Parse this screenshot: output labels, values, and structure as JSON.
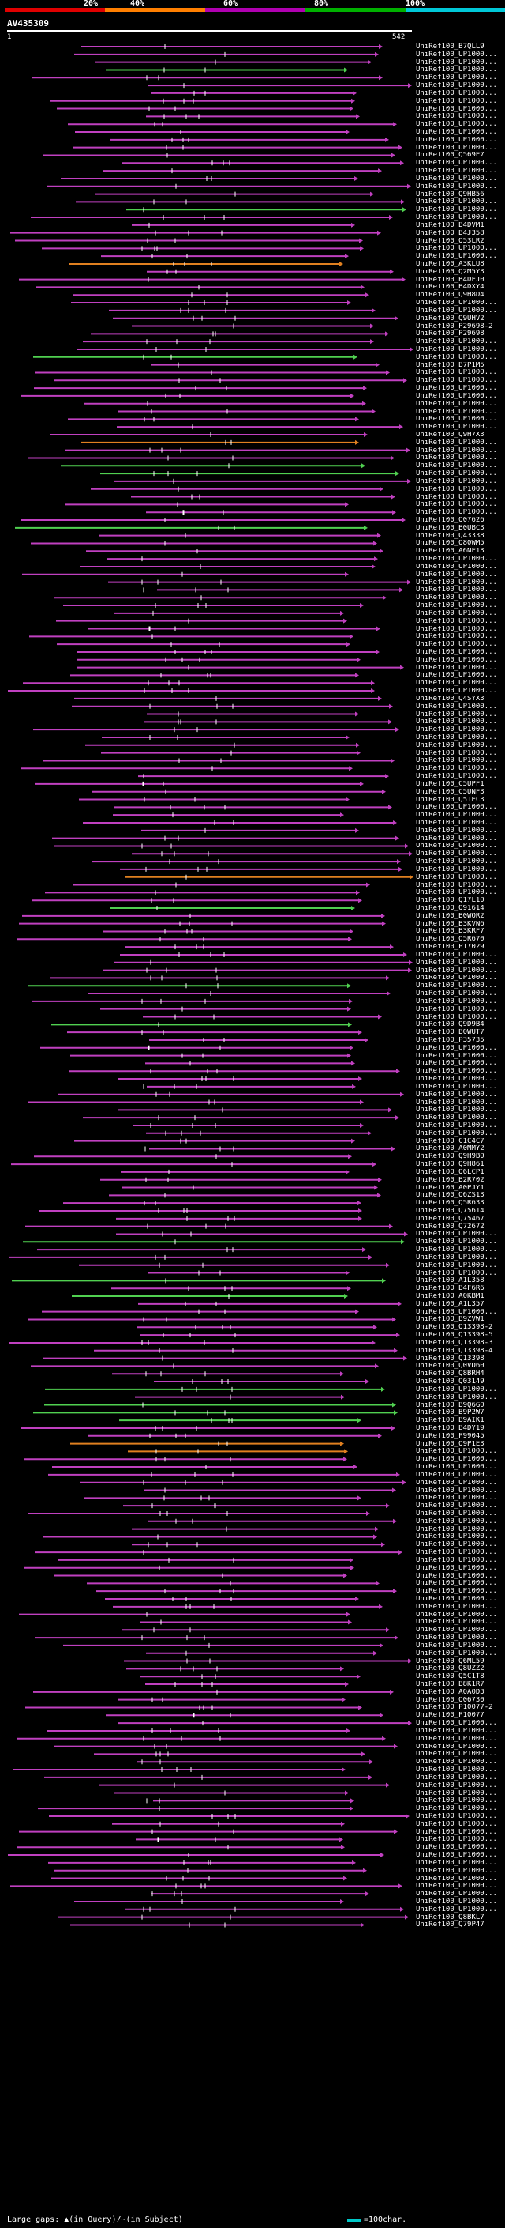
{
  "legend": {
    "segments": [
      {
        "label": "20%",
        "color": "#e00000"
      },
      {
        "label": "40%",
        "color": "#ff7f00"
      },
      {
        "label": "60%",
        "color": "#b000b0"
      },
      {
        "label": "80%",
        "color": "#00b000"
      },
      {
        "label": "100%",
        "color": "#00c8d8"
      }
    ]
  },
  "query": {
    "id": "AV435309",
    "start": "1",
    "end": "542"
  },
  "footer": {
    "gaps_text": "Large gaps: ▲(in Query)/~(in Subject)",
    "scale_text": "=100char."
  },
  "hits": [
    {
      "label": "UniRef100_B7QLL9",
      "color": "#c040c0"
    },
    {
      "label": "UniRef100_UP1000...",
      "color": "#c040c0"
    },
    {
      "label": "UniRef100_UP1000...",
      "color": "#c040c0"
    },
    {
      "label": "UniRef100_UP1000...",
      "color": "#50d050"
    },
    {
      "label": "UniRef100_UP1000...",
      "color": "#c040c0"
    },
    {
      "label": "UniRef100_UP1000...",
      "color": "#c040c0"
    },
    {
      "label": "UniRef100_UP1000...",
      "color": "#c040c0"
    },
    {
      "label": "UniRef100_UP1000...",
      "color": "#c040c0"
    },
    {
      "label": "UniRef100_UP1000...",
      "color": "#c040c0"
    },
    {
      "label": "UniRef100_UP1000...",
      "color": "#c040c0"
    },
    {
      "label": "UniRef100_UP1000...",
      "color": "#c040c0"
    },
    {
      "label": "UniRef100_UP1000...",
      "color": "#c040c0"
    },
    {
      "label": "UniRef100_UP1000...",
      "color": "#c040c0"
    },
    {
      "label": "UniRef100_UP1000...",
      "color": "#c040c0"
    },
    {
      "label": "UniRef100_Q569E7",
      "color": "#c040c0"
    },
    {
      "label": "UniRef100_UP1000...",
      "color": "#c040c0"
    },
    {
      "label": "UniRef100_UP1000...",
      "color": "#c040c0"
    },
    {
      "label": "UniRef100_UP1000...",
      "color": "#c040c0"
    },
    {
      "label": "UniRef100_UP1000...",
      "color": "#c040c0"
    },
    {
      "label": "UniRef100_Q9HB56",
      "color": "#c040c0"
    },
    {
      "label": "UniRef100_UP1000...",
      "color": "#c040c0"
    },
    {
      "label": "UniRef100_UP1000...",
      "color": "#50d050"
    },
    {
      "label": "UniRef100_UP1000...",
      "color": "#c040c0"
    },
    {
      "label": "UniRef100_B4DVM1",
      "color": "#c040c0"
    },
    {
      "label": "UniRef100_B4J358",
      "color": "#c040c0"
    },
    {
      "label": "UniRef100_Q53LR2",
      "color": "#c040c0"
    },
    {
      "label": "UniRef100_UP1000...",
      "color": "#c040c0"
    },
    {
      "label": "UniRef100_UP1000...",
      "color": "#c040c0"
    },
    {
      "label": "UniRef100_A3KLU8",
      "color": "#e08020"
    },
    {
      "label": "UniRef100_Q2M5Y3",
      "color": "#c040c0"
    },
    {
      "label": "UniRef100_B4DFJ0",
      "color": "#c040c0"
    },
    {
      "label": "UniRef100_B4DXY4",
      "color": "#c040c0"
    },
    {
      "label": "UniRef100_Q9H8D4",
      "color": "#c040c0"
    },
    {
      "label": "UniRef100_UP1000...",
      "color": "#c040c0"
    },
    {
      "label": "UniRef100_UP1000...",
      "color": "#c040c0"
    },
    {
      "label": "UniRef100_Q9UHV2",
      "color": "#c040c0"
    },
    {
      "label": "UniRef100_P29698-2",
      "color": "#c040c0"
    },
    {
      "label": "UniRef100_P29698",
      "color": "#c040c0"
    },
    {
      "label": "UniRef100_UP1000...",
      "color": "#c040c0"
    },
    {
      "label": "UniRef100_UP1000...",
      "color": "#c040c0"
    },
    {
      "label": "UniRef100_UP1000...",
      "color": "#50d050"
    },
    {
      "label": "UniRef100_B7P1M5",
      "color": "#c040c0"
    },
    {
      "label": "UniRef100_UP1000...",
      "color": "#c040c0"
    },
    {
      "label": "UniRef100_UP1000...",
      "color": "#c040c0"
    },
    {
      "label": "UniRef100_UP1000...",
      "color": "#c040c0"
    },
    {
      "label": "UniRef100_UP1000...",
      "color": "#c040c0"
    },
    {
      "label": "UniRef100_UP1000...",
      "color": "#c040c0"
    },
    {
      "label": "UniRef100_UP1000...",
      "color": "#c040c0"
    },
    {
      "label": "UniRef100_UP1000...",
      "color": "#c040c0"
    },
    {
      "label": "UniRef100_UP1000...",
      "color": "#c040c0"
    },
    {
      "label": "UniRef100_Q9H7X3",
      "color": "#c040c0"
    },
    {
      "label": "UniRef100_UP1000...",
      "color": "#e08020"
    },
    {
      "label": "UniRef100_UP1000...",
      "color": "#c040c0"
    },
    {
      "label": "UniRef100_UP1000...",
      "color": "#c040c0"
    },
    {
      "label": "UniRef100_UP1000...",
      "color": "#50d050"
    },
    {
      "label": "UniRef100_UP1000...",
      "color": "#50d050"
    },
    {
      "label": "UniRef100_UP1000...",
      "color": "#c040c0"
    },
    {
      "label": "UniRef100_UP1000...",
      "color": "#c040c0"
    },
    {
      "label": "UniRef100_UP1000...",
      "color": "#c040c0"
    },
    {
      "label": "UniRef100_UP1000...",
      "color": "#c040c0"
    },
    {
      "label": "UniRef100_UP1000...",
      "color": "#c040c0"
    },
    {
      "label": "UniRef100_Q07626",
      "color": "#c040c0"
    },
    {
      "label": "UniRef100_B0UBC3",
      "color": "#50d050"
    },
    {
      "label": "UniRef100_Q43338",
      "color": "#c040c0"
    },
    {
      "label": "UniRef100_Q80WM5",
      "color": "#c040c0"
    },
    {
      "label": "UniRef100_A6NF13",
      "color": "#c040c0"
    },
    {
      "label": "UniRef100_UP1000...",
      "color": "#c040c0"
    },
    {
      "label": "UniRef100_UP1000...",
      "color": "#c040c0"
    },
    {
      "label": "UniRef100_UP1000...",
      "color": "#c040c0"
    },
    {
      "label": "UniRef100_UP1000...",
      "color": "#c040c0"
    },
    {
      "label": "UniRef100_UP1000...",
      "color": "#c040c0"
    },
    {
      "label": "UniRef100_UP1000...",
      "color": "#c040c0"
    },
    {
      "label": "UniRef100_UP1000...",
      "color": "#c040c0"
    },
    {
      "label": "UniRef100_UP1000...",
      "color": "#c040c0"
    },
    {
      "label": "UniRef100_UP1000...",
      "color": "#c040c0"
    },
    {
      "label": "UniRef100_UP1000...",
      "color": "#c040c0"
    },
    {
      "label": "UniRef100_UP1000...",
      "color": "#c040c0"
    },
    {
      "label": "UniRef100_UP1000...",
      "color": "#c040c0"
    },
    {
      "label": "UniRef100_UP1000...",
      "color": "#c040c0"
    },
    {
      "label": "UniRef100_UP1000...",
      "color": "#c040c0"
    },
    {
      "label": "UniRef100_UP1000...",
      "color": "#c040c0"
    },
    {
      "label": "UniRef100_UP1000...",
      "color": "#c040c0"
    },
    {
      "label": "UniRef100_UP1000...",
      "color": "#c040c0"
    },
    {
      "label": "UniRef100_UP1000...",
      "color": "#c040c0"
    },
    {
      "label": "UniRef100_Q4SYX3",
      "color": "#c040c0"
    },
    {
      "label": "UniRef100_UP1000...",
      "color": "#c040c0"
    },
    {
      "label": "UniRef100_UP1000...",
      "color": "#c040c0"
    },
    {
      "label": "UniRef100_UP1000...",
      "color": "#c040c0"
    },
    {
      "label": "UniRef100_UP1000...",
      "color": "#c040c0"
    },
    {
      "label": "UniRef100_UP1000...",
      "color": "#c040c0"
    },
    {
      "label": "UniRef100_UP1000...",
      "color": "#c040c0"
    },
    {
      "label": "UniRef100_UP1000...",
      "color": "#c040c0"
    },
    {
      "label": "UniRef100_UP1000...",
      "color": "#c040c0"
    },
    {
      "label": "UniRef100_UP1000...",
      "color": "#c040c0"
    },
    {
      "label": "UniRef100_UP1000...",
      "color": "#c040c0"
    },
    {
      "label": "UniRef100_C5UPF1",
      "color": "#c040c0"
    },
    {
      "label": "UniRef100_C5UNF3",
      "color": "#c040c0"
    },
    {
      "label": "UniRef100_Q5TEC3",
      "color": "#c040c0"
    },
    {
      "label": "UniRef100_UP1000...",
      "color": "#c040c0"
    },
    {
      "label": "UniRef100_UP1000...",
      "color": "#c040c0"
    },
    {
      "label": "UniRef100_UP1000...",
      "color": "#c040c0"
    },
    {
      "label": "UniRef100_UP1000...",
      "color": "#c040c0"
    },
    {
      "label": "UniRef100_UP1000...",
      "color": "#c040c0"
    },
    {
      "label": "UniRef100_UP1000...",
      "color": "#c040c0"
    },
    {
      "label": "UniRef100_UP1000...",
      "color": "#c040c0"
    },
    {
      "label": "UniRef100_UP1000...",
      "color": "#c040c0"
    },
    {
      "label": "UniRef100_UP1000...",
      "color": "#c040c0"
    },
    {
      "label": "UniRef100_UP1000...",
      "color": "#e08020"
    },
    {
      "label": "UniRef100_UP1000...",
      "color": "#c040c0"
    },
    {
      "label": "UniRef100_UP1000...",
      "color": "#c040c0"
    },
    {
      "label": "UniRef100_Q17L10",
      "color": "#c040c0"
    },
    {
      "label": "UniRef100_Q91614",
      "color": "#50d050"
    },
    {
      "label": "UniRef100_B0WOR2",
      "color": "#c040c0"
    },
    {
      "label": "UniRef100_B3KVN6",
      "color": "#c040c0"
    },
    {
      "label": "UniRef100_B3KRF7",
      "color": "#c040c0"
    },
    {
      "label": "UniRef100_Q5R670",
      "color": "#c040c0"
    },
    {
      "label": "UniRef100_P17029",
      "color": "#c040c0"
    },
    {
      "label": "UniRef100_UP1000...",
      "color": "#c040c0"
    },
    {
      "label": "UniRef100_UP1000...",
      "color": "#c040c0"
    },
    {
      "label": "UniRef100_UP1000...",
      "color": "#c040c0"
    },
    {
      "label": "UniRef100_UP1000...",
      "color": "#c040c0"
    },
    {
      "label": "UniRef100_UP1000...",
      "color": "#50d050"
    },
    {
      "label": "UniRef100_UP1000...",
      "color": "#c040c0"
    },
    {
      "label": "UniRef100_UP1000...",
      "color": "#c040c0"
    },
    {
      "label": "UniRef100_UP1000...",
      "color": "#c040c0"
    },
    {
      "label": "UniRef100_UP1000...",
      "color": "#c040c0"
    },
    {
      "label": "UniRef100_Q9D9B4",
      "color": "#50d050"
    },
    {
      "label": "UniRef100_B0WUT7",
      "color": "#c040c0"
    },
    {
      "label": "UniRef100_P35735",
      "color": "#c040c0"
    },
    {
      "label": "UniRef100_UP1000...",
      "color": "#c040c0"
    },
    {
      "label": "UniRef100_UP1000...",
      "color": "#c040c0"
    },
    {
      "label": "UniRef100_UP1000...",
      "color": "#c040c0"
    },
    {
      "label": "UniRef100_UP1000...",
      "color": "#c040c0"
    },
    {
      "label": "UniRef100_UP1000...",
      "color": "#c040c0"
    },
    {
      "label": "UniRef100_UP1000...",
      "color": "#c040c0"
    },
    {
      "label": "UniRef100_UP1000...",
      "color": "#c040c0"
    },
    {
      "label": "UniRef100_UP1000...",
      "color": "#c040c0"
    },
    {
      "label": "UniRef100_UP1000...",
      "color": "#c040c0"
    },
    {
      "label": "UniRef100_UP1000...",
      "color": "#c040c0"
    },
    {
      "label": "UniRef100_UP1000...",
      "color": "#c040c0"
    },
    {
      "label": "UniRef100_UP1000...",
      "color": "#c040c0"
    },
    {
      "label": "UniRef100_C1C4C7",
      "color": "#c040c0"
    },
    {
      "label": "UniRef100_A0MMY2",
      "color": "#c040c0"
    },
    {
      "label": "UniRef100_Q9H9B0",
      "color": "#c040c0"
    },
    {
      "label": "UniRef100_Q9H861",
      "color": "#c040c0"
    },
    {
      "label": "UniRef100_Q6LCP1",
      "color": "#c040c0"
    },
    {
      "label": "UniRef100_B2R702",
      "color": "#c040c0"
    },
    {
      "label": "UniRef100_A0PJY1",
      "color": "#c040c0"
    },
    {
      "label": "UniRef100_Q6ZS13",
      "color": "#c040c0"
    },
    {
      "label": "UniRef100_Q5R633",
      "color": "#c040c0"
    },
    {
      "label": "UniRef100_Q75614",
      "color": "#c040c0"
    },
    {
      "label": "UniRef100_Q75467",
      "color": "#c040c0"
    },
    {
      "label": "UniRef100_Q72672",
      "color": "#c040c0"
    },
    {
      "label": "UniRef100_UP1000...",
      "color": "#c040c0"
    },
    {
      "label": "UniRef100_UP1000...",
      "color": "#50d050"
    },
    {
      "label": "UniRef100_UP1000...",
      "color": "#c040c0"
    },
    {
      "label": "UniRef100_UP1000...",
      "color": "#c040c0"
    },
    {
      "label": "UniRef100_UP1000...",
      "color": "#c040c0"
    },
    {
      "label": "UniRef100_UP1000...",
      "color": "#c040c0"
    },
    {
      "label": "UniRef100_A1L358",
      "color": "#50d050"
    },
    {
      "label": "UniRef100_B4F6R6",
      "color": "#c040c0"
    },
    {
      "label": "UniRef100_A0KBM1",
      "color": "#50d050"
    },
    {
      "label": "UniRef100_A1L357",
      "color": "#c040c0"
    },
    {
      "label": "UniRef100_UP1000...",
      "color": "#c040c0"
    },
    {
      "label": "UniRef100_B9ZVW1",
      "color": "#c040c0"
    },
    {
      "label": "UniRef100_Q13398-2",
      "color": "#c040c0"
    },
    {
      "label": "UniRef100_Q13398-5",
      "color": "#c040c0"
    },
    {
      "label": "UniRef100_Q13398-3",
      "color": "#c040c0"
    },
    {
      "label": "UniRef100_Q13398-4",
      "color": "#c040c0"
    },
    {
      "label": "UniRef100_Q13398",
      "color": "#c040c0"
    },
    {
      "label": "UniRef100_Q0VD60",
      "color": "#c040c0"
    },
    {
      "label": "UniRef100_Q8BRH4",
      "color": "#c040c0"
    },
    {
      "label": "UniRef100_Q03149",
      "color": "#c040c0"
    },
    {
      "label": "UniRef100_UP1000...",
      "color": "#50d050"
    },
    {
      "label": "UniRef100_UP1000...",
      "color": "#c040c0"
    },
    {
      "label": "UniRef100_B9Q6G0",
      "color": "#50d050"
    },
    {
      "label": "UniRef100_B9P2W7",
      "color": "#50d050"
    },
    {
      "label": "UniRef100_B9AIK1",
      "color": "#50d050"
    },
    {
      "label": "UniRef100_B4DY19",
      "color": "#c040c0"
    },
    {
      "label": "UniRef100_P99045",
      "color": "#c040c0"
    },
    {
      "label": "UniRef100_Q9P1E3",
      "color": "#e08020"
    },
    {
      "label": "UniRef100_UP1000...",
      "color": "#e08020"
    },
    {
      "label": "UniRef100_UP1000...",
      "color": "#c040c0"
    },
    {
      "label": "UniRef100_UP1000...",
      "color": "#c040c0"
    },
    {
      "label": "UniRef100_UP1000...",
      "color": "#c040c0"
    },
    {
      "label": "UniRef100_UP1000...",
      "color": "#c040c0"
    },
    {
      "label": "UniRef100_UP1000...",
      "color": "#c040c0"
    },
    {
      "label": "UniRef100_UP1000...",
      "color": "#c040c0"
    },
    {
      "label": "UniRef100_UP1000...",
      "color": "#c040c0"
    },
    {
      "label": "UniRef100_UP1000...",
      "color": "#c040c0"
    },
    {
      "label": "UniRef100_UP1000...",
      "color": "#c040c0"
    },
    {
      "label": "UniRef100_UP1000...",
      "color": "#c040c0"
    },
    {
      "label": "UniRef100_UP1000...",
      "color": "#c040c0"
    },
    {
      "label": "UniRef100_UP1000...",
      "color": "#c040c0"
    },
    {
      "label": "UniRef100_UP1000...",
      "color": "#c040c0"
    },
    {
      "label": "UniRef100_UP1000...",
      "color": "#c040c0"
    },
    {
      "label": "UniRef100_UP1000...",
      "color": "#c040c0"
    },
    {
      "label": "UniRef100_UP1000...",
      "color": "#c040c0"
    },
    {
      "label": "UniRef100_UP1000...",
      "color": "#c040c0"
    },
    {
      "label": "UniRef100_UP1000...",
      "color": "#c040c0"
    },
    {
      "label": "UniRef100_UP1000...",
      "color": "#c040c0"
    },
    {
      "label": "UniRef100_UP1000...",
      "color": "#c040c0"
    },
    {
      "label": "UniRef100_UP1000...",
      "color": "#c040c0"
    },
    {
      "label": "UniRef100_UP1000...",
      "color": "#c040c0"
    },
    {
      "label": "UniRef100_UP1000...",
      "color": "#c040c0"
    },
    {
      "label": "UniRef100_UP1000...",
      "color": "#c040c0"
    },
    {
      "label": "UniRef100_UP1000...",
      "color": "#c040c0"
    },
    {
      "label": "UniRef100_UP1000...",
      "color": "#c040c0"
    },
    {
      "label": "UniRef100_Q6ML59",
      "color": "#c040c0"
    },
    {
      "label": "UniRef100_Q8UZZ2",
      "color": "#c040c0"
    },
    {
      "label": "UniRef100_Q5C1T8",
      "color": "#c040c0"
    },
    {
      "label": "UniRef100_B8K1R7",
      "color": "#c040c0"
    },
    {
      "label": "UniRef100_A0A0D3",
      "color": "#c040c0"
    },
    {
      "label": "UniRef100_Q06730",
      "color": "#c040c0"
    },
    {
      "label": "UniRef100_P10077-2",
      "color": "#c040c0"
    },
    {
      "label": "UniRef100_P10077",
      "color": "#c040c0"
    },
    {
      "label": "UniRef100_UP1000...",
      "color": "#c040c0"
    },
    {
      "label": "UniRef100_UP1000...",
      "color": "#c040c0"
    },
    {
      "label": "UniRef100_UP1000...",
      "color": "#c040c0"
    },
    {
      "label": "UniRef100_UP1000...",
      "color": "#c040c0"
    },
    {
      "label": "UniRef100_UP1000...",
      "color": "#c040c0"
    },
    {
      "label": "UniRef100_UP1000...",
      "color": "#c040c0"
    },
    {
      "label": "UniRef100_UP1000...",
      "color": "#c040c0"
    },
    {
      "label": "UniRef100_UP1000...",
      "color": "#c040c0"
    },
    {
      "label": "UniRef100_UP1000...",
      "color": "#c040c0"
    },
    {
      "label": "UniRef100_UP1000...",
      "color": "#c040c0"
    },
    {
      "label": "UniRef100_UP1000...",
      "color": "#c040c0"
    },
    {
      "label": "UniRef100_UP1000...",
      "color": "#c040c0"
    },
    {
      "label": "UniRef100_UP1000...",
      "color": "#c040c0"
    },
    {
      "label": "UniRef100_UP1000...",
      "color": "#c040c0"
    },
    {
      "label": "UniRef100_UP1000...",
      "color": "#c040c0"
    },
    {
      "label": "UniRef100_UP1000...",
      "color": "#c040c0"
    },
    {
      "label": "UniRef100_UP1000...",
      "color": "#c040c0"
    },
    {
      "label": "UniRef100_UP1000...",
      "color": "#c040c0"
    },
    {
      "label": "UniRef100_UP1000...",
      "color": "#c040c0"
    },
    {
      "label": "UniRef100_UP1000...",
      "color": "#c040c0"
    },
    {
      "label": "UniRef100_UP1000...",
      "color": "#c040c0"
    },
    {
      "label": "UniRef100_UP1000...",
      "color": "#c040c0"
    },
    {
      "label": "UniRef100_UP1000...",
      "color": "#c040c0"
    },
    {
      "label": "UniRef100_UP1000...",
      "color": "#c040c0"
    },
    {
      "label": "UniRef100_UP1000...",
      "color": "#c040c0"
    },
    {
      "label": "UniRef100_Q8BKL7",
      "color": "#c040c0"
    },
    {
      "label": "UniRef100_Q79P47",
      "color": "#c040c0"
    }
  ]
}
